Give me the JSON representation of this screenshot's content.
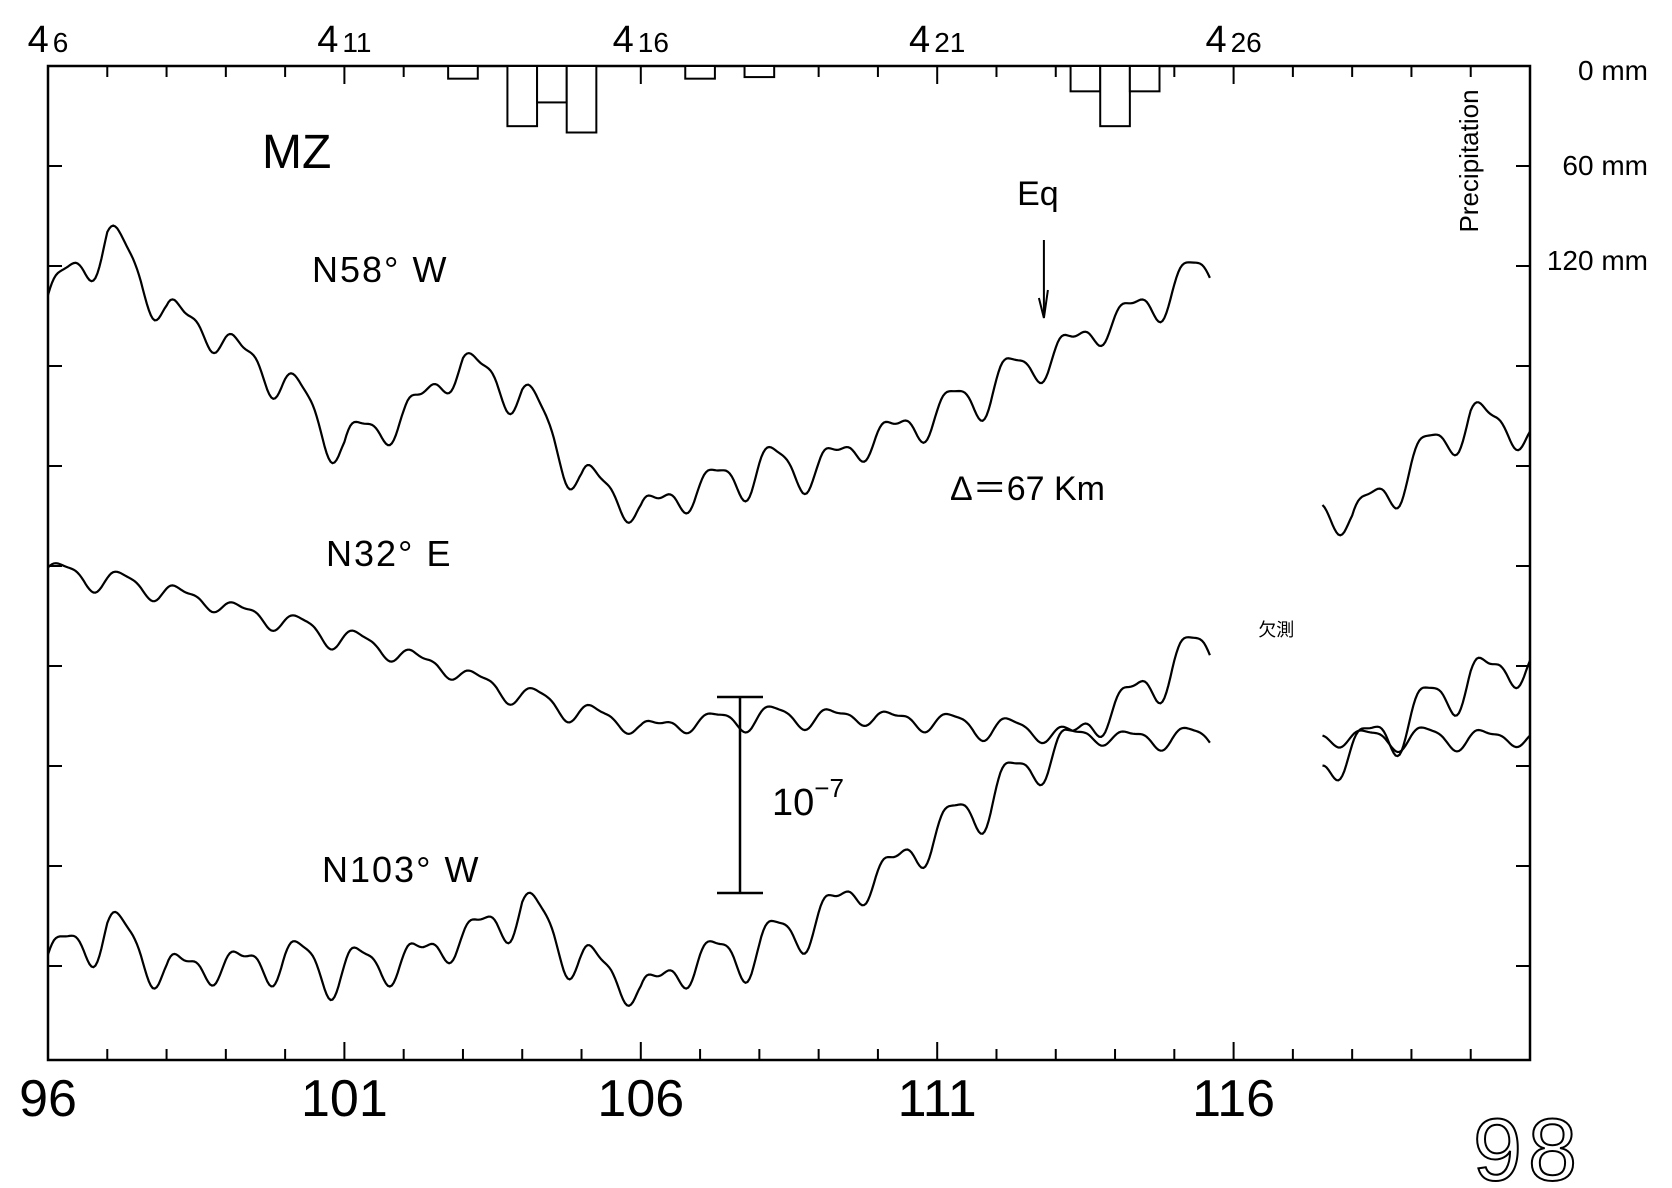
{
  "page_number": "98",
  "chart_data": {
    "type": "line",
    "title": "MZ",
    "x_axis": {
      "ticks": [
        96,
        101,
        106,
        111,
        116
      ],
      "range": [
        96,
        121
      ]
    },
    "top_axis": {
      "ticks": [
        {
          "x": 96,
          "month": "4",
          "day": "6"
        },
        {
          "x": 101,
          "month": "4",
          "day": "11"
        },
        {
          "x": 106,
          "month": "4",
          "day": "16"
        },
        {
          "x": 111,
          "month": "4",
          "day": "21"
        },
        {
          "x": 116,
          "month": "4",
          "day": "26"
        }
      ]
    },
    "precipitation": {
      "label": "Precipitation",
      "unit": "mm",
      "ticks": [
        0,
        60,
        120
      ],
      "tick_labels": [
        "0 mm",
        "60 mm",
        "120 mm"
      ],
      "bars": [
        {
          "x": 103,
          "value": 8
        },
        {
          "x": 104,
          "value": 38
        },
        {
          "x": 104.5,
          "value": 23
        },
        {
          "x": 105,
          "value": 42
        },
        {
          "x": 107,
          "value": 8
        },
        {
          "x": 108,
          "value": 7
        },
        {
          "x": 113.5,
          "value": 16
        },
        {
          "x": 114,
          "value": 38
        },
        {
          "x": 114.5,
          "value": 16
        }
      ]
    },
    "missing_data": {
      "label": "欠測",
      "start": 115.6,
      "end": 117.5
    },
    "scale_bar": {
      "label_base": "10",
      "label_exp": "−7"
    },
    "annotations": {
      "earthquake": "Eq",
      "earthquake_x": 112.8,
      "distance": "Δ＝67 Km"
    },
    "series": [
      {
        "name": "N58° W",
        "points": [
          [
            96,
            0.0
          ],
          [
            97,
            0.6
          ],
          [
            98,
            -0.1
          ],
          [
            99,
            -0.4
          ],
          [
            100,
            -0.8
          ],
          [
            101,
            -1.4
          ],
          [
            102,
            -1.1
          ],
          [
            103,
            -0.6
          ],
          [
            104,
            -0.9
          ],
          [
            105,
            -1.7
          ],
          [
            106,
            -2.0
          ],
          [
            107,
            -1.8
          ],
          [
            108,
            -1.6
          ],
          [
            109,
            -1.6
          ],
          [
            110,
            -1.3
          ],
          [
            111,
            -1.1
          ],
          [
            112,
            -0.8
          ],
          [
            113,
            -0.5
          ],
          [
            114,
            -0.2
          ],
          [
            115,
            0.1
          ],
          [
            115.6,
            0.3
          ],
          [
            117.5,
            -2.0
          ],
          [
            118,
            -2.1
          ],
          [
            119,
            -1.6
          ],
          [
            120,
            -1.1
          ],
          [
            121,
            -1.3
          ]
        ]
      },
      {
        "name": "N32° E",
        "points": [
          [
            96,
            0.0
          ],
          [
            98,
            -0.2
          ],
          [
            100,
            -0.5
          ],
          [
            102,
            -0.8
          ],
          [
            104,
            -1.2
          ],
          [
            106,
            -1.5
          ],
          [
            108,
            -1.4
          ],
          [
            110,
            -1.4
          ],
          [
            112,
            -1.5
          ],
          [
            114,
            -1.6
          ],
          [
            115.6,
            -1.6
          ],
          [
            117.5,
            -1.6
          ],
          [
            119,
            -1.6
          ],
          [
            121,
            -1.6
          ]
        ]
      },
      {
        "name": "N103° W",
        "points": [
          [
            96,
            0.0
          ],
          [
            97,
            0.3
          ],
          [
            98,
            -0.1
          ],
          [
            100,
            0.0
          ],
          [
            101,
            -0.1
          ],
          [
            102,
            0.0
          ],
          [
            103,
            0.2
          ],
          [
            104,
            0.5
          ],
          [
            105,
            0.0
          ],
          [
            106,
            -0.3
          ],
          [
            107,
            0.0
          ],
          [
            108,
            0.1
          ],
          [
            109,
            0.4
          ],
          [
            110,
            0.8
          ],
          [
            111,
            1.2
          ],
          [
            112,
            1.6
          ],
          [
            113,
            2.0
          ],
          [
            114,
            2.4
          ],
          [
            115,
            2.8
          ],
          [
            115.6,
            3.0
          ],
          [
            117.5,
            1.8
          ],
          [
            118,
            2.0
          ],
          [
            119,
            2.3
          ],
          [
            120,
            2.7
          ],
          [
            121,
            2.8
          ]
        ]
      }
    ]
  }
}
